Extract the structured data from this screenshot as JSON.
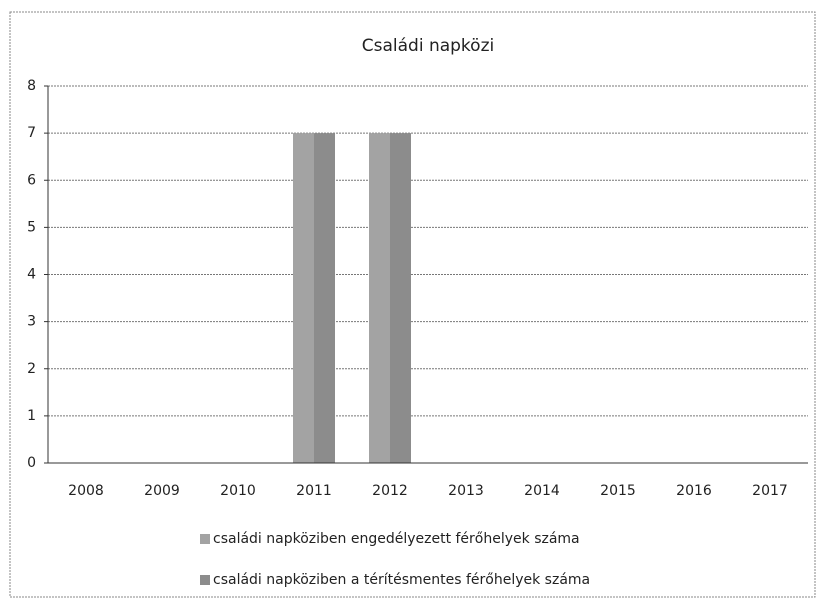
{
  "chart_data": {
    "type": "bar",
    "title": "Családi napközi",
    "categories": [
      "2008",
      "2009",
      "2010",
      "2011",
      "2012",
      "2013",
      "2014",
      "2015",
      "2016",
      "2017"
    ],
    "series": [
      {
        "name": "családi napköziben engedélyezett férőhelyek száma",
        "color": "#a3a3a3",
        "values": [
          0,
          0,
          0,
          7,
          7,
          0,
          0,
          0,
          0,
          0
        ]
      },
      {
        "name": "családi napköziben a térítésmentes férőhelyek száma",
        "color": "#8c8c8c",
        "values": [
          0,
          0,
          0,
          7,
          7,
          0,
          0,
          0,
          0,
          0
        ]
      }
    ],
    "ylim": [
      0,
      8
    ],
    "yticks": [
      0,
      1,
      2,
      3,
      4,
      5,
      6,
      7,
      8
    ],
    "grid": true
  }
}
